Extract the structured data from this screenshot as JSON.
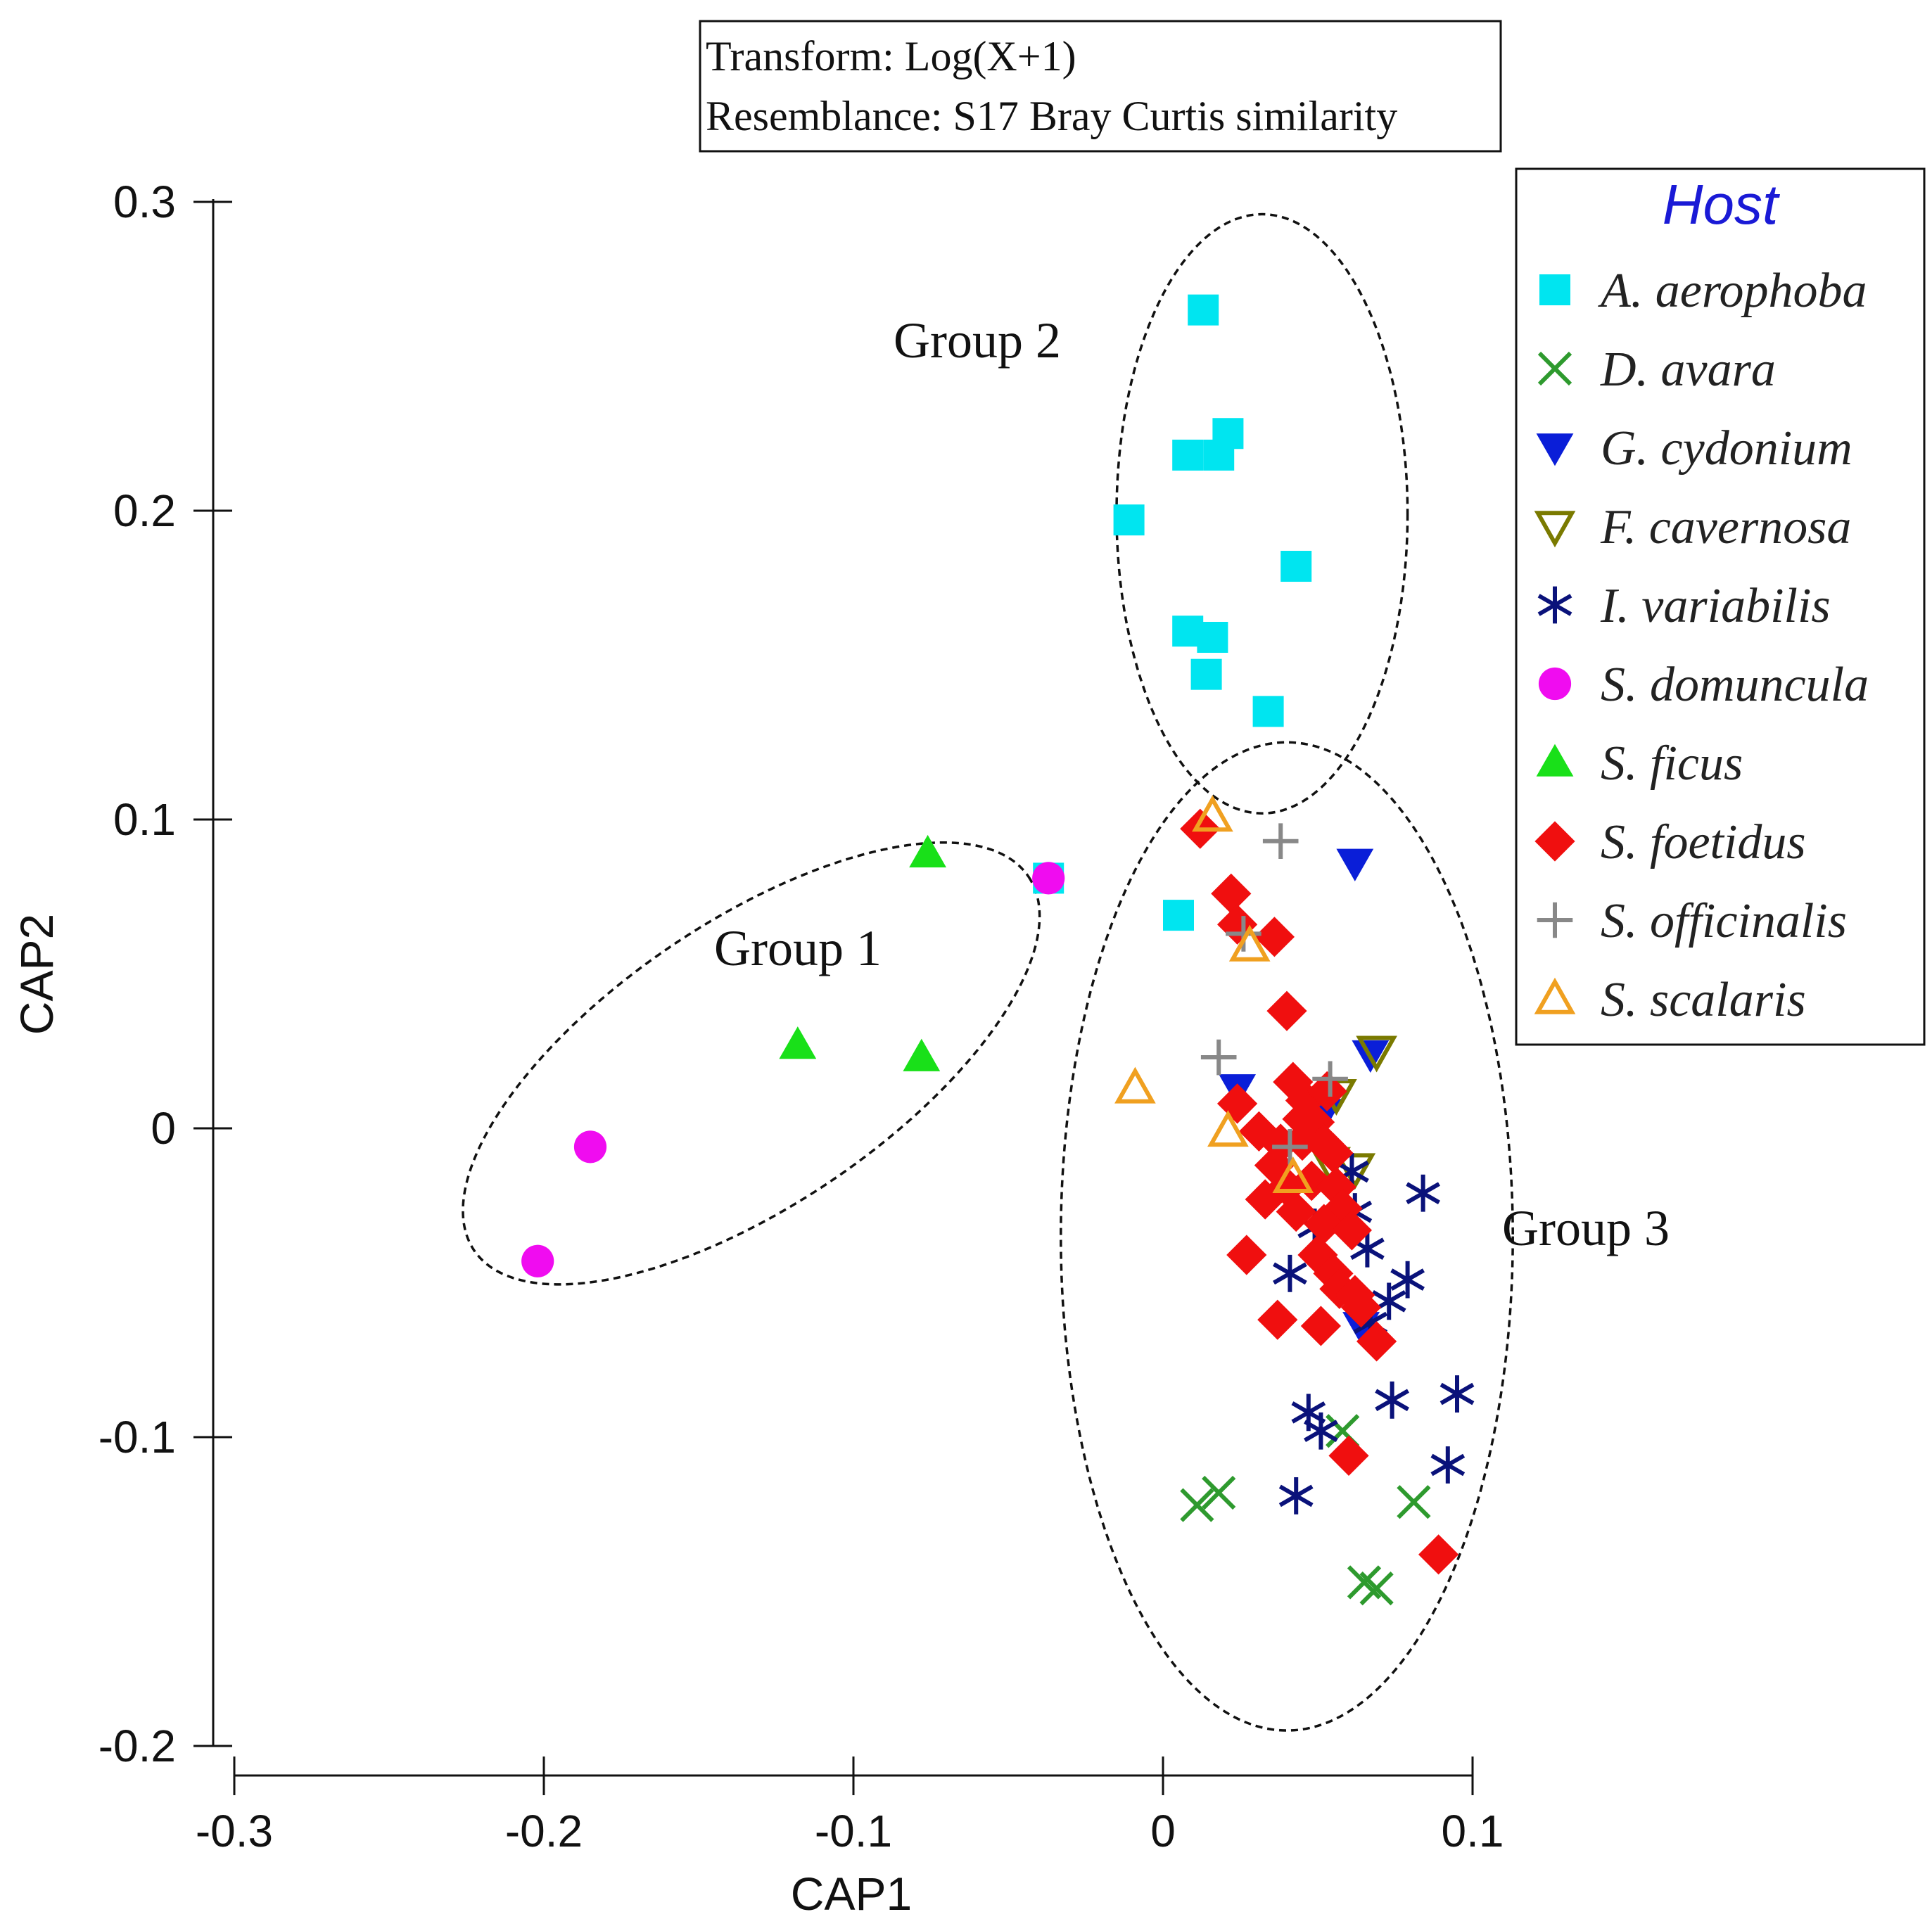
{
  "chart_data": {
    "type": "scatter",
    "title": "",
    "xlabel": "CAP1",
    "ylabel": "CAP2",
    "xlim": [
      -0.3,
      0.1
    ],
    "ylim": [
      -0.2,
      0.3
    ],
    "x_ticks": [
      -0.3,
      -0.2,
      -0.1,
      0,
      0.1
    ],
    "x_tick_labels": [
      "-0.3",
      "-0.2",
      "-0.1",
      "0",
      "0.1"
    ],
    "y_ticks": [
      0.3,
      0.2,
      0.1,
      0,
      -0.1,
      -0.2
    ],
    "y_tick_labels": [
      "0.3",
      "0.2",
      "0.1",
      "0",
      "-0.1",
      "-0.2"
    ],
    "annotation": {
      "transform": "Transform: Log(X+1)",
      "resemblance": "Resemblance: S17 Bray Curtis similarity"
    },
    "legend": {
      "title": "Host",
      "position": "top-right"
    },
    "groups": [
      {
        "label": "Group 1",
        "cx": -0.133,
        "cy": 0.021,
        "rx": 0.108,
        "ry": 0.046,
        "angle_deg": -34
      },
      {
        "label": "Group 2",
        "cx": 0.032,
        "cy": 0.199,
        "rx": 0.047,
        "ry": 0.097,
        "angle_deg": 0
      },
      {
        "label": "Group 3",
        "cx": 0.04,
        "cy": -0.035,
        "rx": 0.073,
        "ry": 0.16,
        "angle_deg": 0
      }
    ],
    "series": [
      {
        "name": "A. aerophoba",
        "marker": "square",
        "color": "#00e5f0",
        "points": [
          [
            0.013,
            0.265
          ],
          [
            0.008,
            0.218
          ],
          [
            0.018,
            0.218
          ],
          [
            0.021,
            0.225
          ],
          [
            -0.011,
            0.197
          ],
          [
            0.043,
            0.182
          ],
          [
            0.008,
            0.161
          ],
          [
            0.016,
            0.159
          ],
          [
            0.014,
            0.147
          ],
          [
            0.034,
            0.135
          ],
          [
            -0.037,
            0.081
          ],
          [
            0.005,
            0.069
          ]
        ]
      },
      {
        "name": "D. avara",
        "marker": "x",
        "color": "#2e9a2e",
        "points": [
          [
            0.011,
            -0.122
          ],
          [
            0.018,
            -0.118
          ],
          [
            0.058,
            -0.098
          ],
          [
            0.081,
            -0.121
          ],
          [
            0.065,
            -0.147
          ],
          [
            0.069,
            -0.149
          ]
        ]
      },
      {
        "name": "G. cydonium",
        "marker": "triangle-down-filled",
        "color": "#0a1ed8",
        "points": [
          [
            0.062,
            0.086
          ],
          [
            0.024,
            0.013
          ],
          [
            0.067,
            0.024
          ],
          [
            0.064,
            -0.064
          ],
          [
            0.052,
            0.005
          ]
        ]
      },
      {
        "name": "F. cavernosa",
        "marker": "triangle-down-open",
        "color": "#7a7a00",
        "points": [
          [
            0.069,
            0.025
          ],
          [
            0.056,
            0.011
          ],
          [
            0.054,
            -0.011
          ],
          [
            0.062,
            -0.013
          ]
        ]
      },
      {
        "name": "I. variabilis",
        "marker": "asterisk",
        "color": "#0a127a",
        "points": [
          [
            0.084,
            -0.021
          ],
          [
            0.061,
            -0.014
          ],
          [
            0.062,
            -0.027
          ],
          [
            0.049,
            -0.032
          ],
          [
            0.066,
            -0.039
          ],
          [
            0.041,
            -0.047
          ],
          [
            0.079,
            -0.049
          ],
          [
            0.073,
            -0.056
          ],
          [
            0.067,
            -0.063
          ],
          [
            0.047,
            -0.092
          ],
          [
            0.051,
            -0.098
          ],
          [
            0.074,
            -0.088
          ],
          [
            0.095,
            -0.086
          ],
          [
            0.092,
            -0.109
          ],
          [
            0.043,
            -0.119
          ]
        ]
      },
      {
        "name": "S. domuncula",
        "marker": "circle",
        "color": "#f00cf0",
        "points": [
          [
            -0.037,
            0.081
          ],
          [
            -0.185,
            -0.006
          ],
          [
            -0.202,
            -0.043
          ]
        ]
      },
      {
        "name": "S. ficus",
        "marker": "triangle-up-filled",
        "color": "#19e019",
        "points": [
          [
            -0.076,
            0.089
          ],
          [
            -0.118,
            0.027
          ],
          [
            -0.078,
            0.023
          ]
        ]
      },
      {
        "name": "S. foetidus",
        "marker": "diamond",
        "color": "#f00f0f",
        "points": [
          [
            0.012,
            0.097
          ],
          [
            0.022,
            0.076
          ],
          [
            0.024,
            0.066
          ],
          [
            0.036,
            0.062
          ],
          [
            0.04,
            0.038
          ],
          [
            0.024,
            0.008
          ],
          [
            0.031,
            -0.001
          ],
          [
            0.036,
            -0.012
          ],
          [
            0.033,
            -0.023
          ],
          [
            0.027,
            -0.041
          ],
          [
            0.037,
            -0.062
          ],
          [
            0.051,
            -0.064
          ],
          [
            0.069,
            -0.069
          ],
          [
            0.06,
            -0.106
          ],
          [
            0.089,
            -0.138
          ],
          [
            0.042,
            0.015
          ],
          [
            0.046,
            0.009
          ],
          [
            0.049,
            0.002
          ],
          [
            0.052,
            -0.005
          ],
          [
            0.045,
            -0.004
          ],
          [
            0.055,
            -0.008
          ],
          [
            0.04,
            -0.019
          ],
          [
            0.048,
            -0.017
          ],
          [
            0.056,
            -0.019
          ],
          [
            0.058,
            -0.026
          ],
          [
            0.052,
            -0.031
          ],
          [
            0.061,
            -0.033
          ],
          [
            0.05,
            -0.041
          ],
          [
            0.055,
            -0.047
          ],
          [
            0.057,
            -0.052
          ],
          [
            0.062,
            -0.054
          ],
          [
            0.064,
            -0.058
          ],
          [
            0.043,
            -0.027
          ],
          [
            0.045,
            0.003
          ],
          [
            0.038,
            -0.005
          ],
          [
            0.053,
            0.012
          ]
        ]
      },
      {
        "name": "S. officinalis",
        "marker": "plus",
        "color": "#888888",
        "points": [
          [
            0.038,
            0.093
          ],
          [
            0.026,
            0.063
          ],
          [
            0.018,
            0.023
          ],
          [
            0.054,
            0.016
          ],
          [
            0.041,
            -0.006
          ]
        ]
      },
      {
        "name": "S. scalaris",
        "marker": "triangle-up-open",
        "color": "#f0a020",
        "points": [
          [
            0.016,
            0.101
          ],
          [
            0.028,
            0.059
          ],
          [
            -0.009,
            0.013
          ],
          [
            0.021,
            -0.001
          ],
          [
            0.042,
            -0.016
          ]
        ]
      }
    ]
  }
}
